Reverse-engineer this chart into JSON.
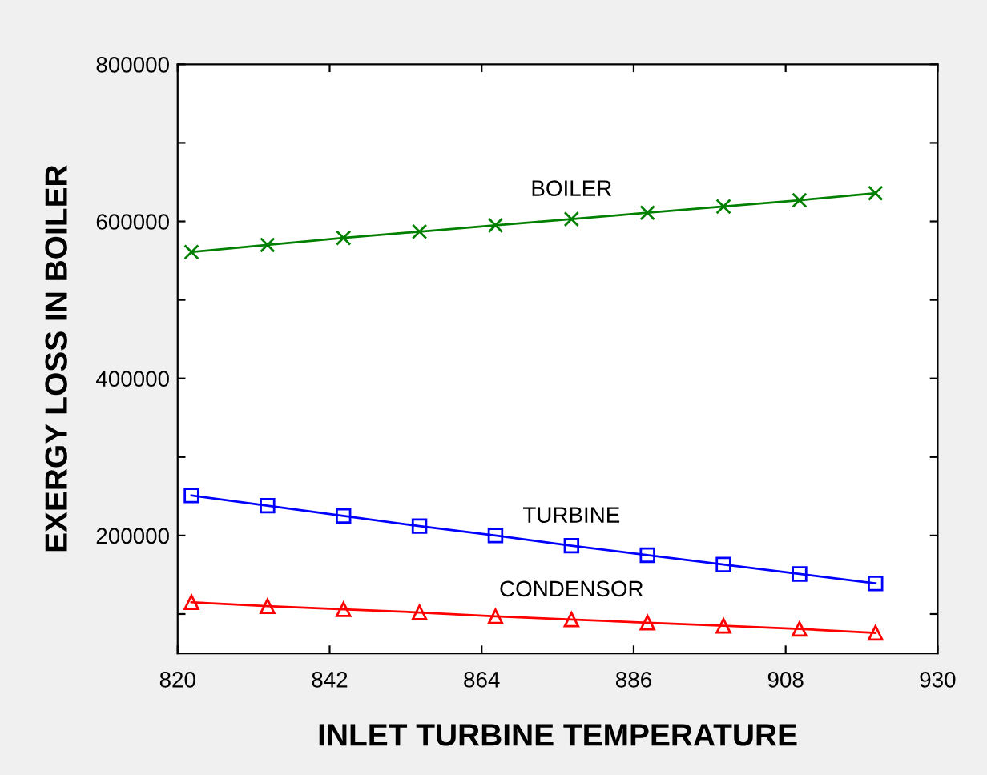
{
  "chart_data": {
    "type": "line",
    "xlabel": "INLET TURBINE TEMPERATURE",
    "ylabel": "EXERGY LOSS IN BOILER",
    "x": [
      822,
      833,
      844,
      855,
      866,
      877,
      888,
      899,
      910,
      921
    ],
    "series": [
      {
        "name": "BOILER",
        "color": "#008000",
        "marker": "cross",
        "values": [
          561000,
          570000,
          579000,
          587000,
          595000,
          603000,
          611000,
          619000,
          627000,
          636000
        ]
      },
      {
        "name": "TURBINE",
        "color": "#0000ff",
        "marker": "square",
        "values": [
          251000,
          238000,
          225000,
          212000,
          200000,
          187000,
          175000,
          163000,
          151000,
          139000
        ]
      },
      {
        "name": "CONDENSOR",
        "color": "#ff0000",
        "marker": "triangle",
        "values": [
          115000,
          110000,
          106000,
          102000,
          97000,
          93000,
          89000,
          85000,
          81000,
          76000
        ]
      }
    ],
    "xlim": [
      820,
      930
    ],
    "xticks": [
      820,
      842,
      864,
      886,
      908,
      930
    ],
    "ylim": [
      50000,
      800000
    ],
    "yticks": [
      {
        "value": 100000,
        "label": null
      },
      200000,
      {
        "value": 300000,
        "label": null
      },
      400000,
      {
        "value": 500000,
        "label": null
      },
      600000,
      {
        "value": 700000,
        "label": null
      },
      800000
    ],
    "grid": false,
    "legend": false
  }
}
